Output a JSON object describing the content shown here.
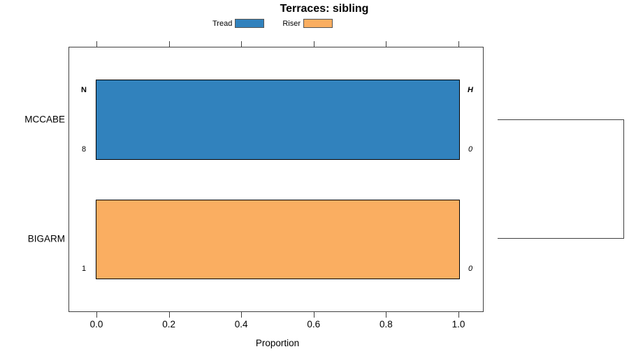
{
  "chart_data": {
    "type": "bar",
    "orientation": "horizontal",
    "title": "Terraces: sibling",
    "xlabel": "Proportion",
    "xlim": [
      0,
      1
    ],
    "xticks": [
      {
        "value": 0.0,
        "label": "0.0"
      },
      {
        "value": 0.2,
        "label": "0.2"
      },
      {
        "value": 0.4,
        "label": "0.4"
      },
      {
        "value": 0.6,
        "label": "0.6"
      },
      {
        "value": 0.8,
        "label": "0.8"
      },
      {
        "value": 1.0,
        "label": "1.0"
      }
    ],
    "axis_ticks_top": true,
    "grid": false,
    "categories": [
      "MCCABE",
      "BIGARM"
    ],
    "bars": [
      {
        "category": "MCCABE",
        "series": "Tread",
        "value": 1.0,
        "color": "#3182bd",
        "labels": {
          "left_header": "N",
          "left_value": "8",
          "right_header": "H",
          "right_value": "0"
        }
      },
      {
        "category": "BIGARM",
        "series": "Riser",
        "value": 1.0,
        "color": "#faae61",
        "labels": {
          "left_header": "",
          "left_value": "1",
          "right_header": "",
          "right_value": "0"
        }
      }
    ],
    "legend": {
      "position": "top",
      "entries": [
        {
          "label": "Tread",
          "color": "#3182bd"
        },
        {
          "label": "Riser",
          "color": "#faae61"
        }
      ]
    },
    "bracket_connects": [
      "MCCABE",
      "BIGARM"
    ],
    "colors": {
      "axis": "#404040",
      "bar_border": "#000000"
    }
  }
}
